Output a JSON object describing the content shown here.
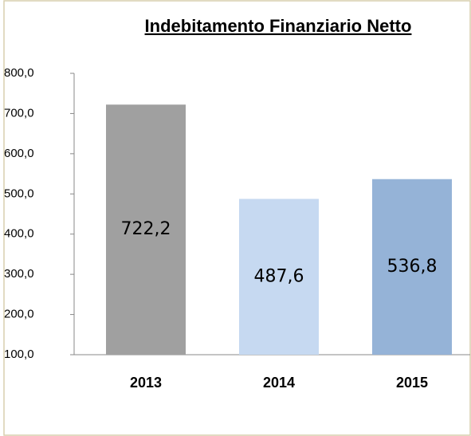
{
  "chart_data": {
    "type": "bar",
    "title": "Indebitamento Finanziario Netto",
    "categories": [
      "2013",
      "2014",
      "2015"
    ],
    "values": [
      722.2,
      487.6,
      536.8
    ],
    "value_labels": [
      "722,2",
      "487,6",
      "536,8"
    ],
    "colors": [
      "#a0a0a0",
      "#c6d9f1",
      "#95b3d7"
    ],
    "ylim": [
      100,
      800
    ],
    "yticks": [
      {
        "value": 100,
        "label": "100,0"
      },
      {
        "value": 200,
        "label": "200,0"
      },
      {
        "value": 300,
        "label": "300,0"
      },
      {
        "value": 400,
        "label": "400,0"
      },
      {
        "value": 500,
        "label": "500,0"
      },
      {
        "value": 600,
        "label": "600,0"
      },
      {
        "value": 700,
        "label": "700,0"
      },
      {
        "value": 800,
        "label": "800,0"
      }
    ],
    "grid": false
  }
}
